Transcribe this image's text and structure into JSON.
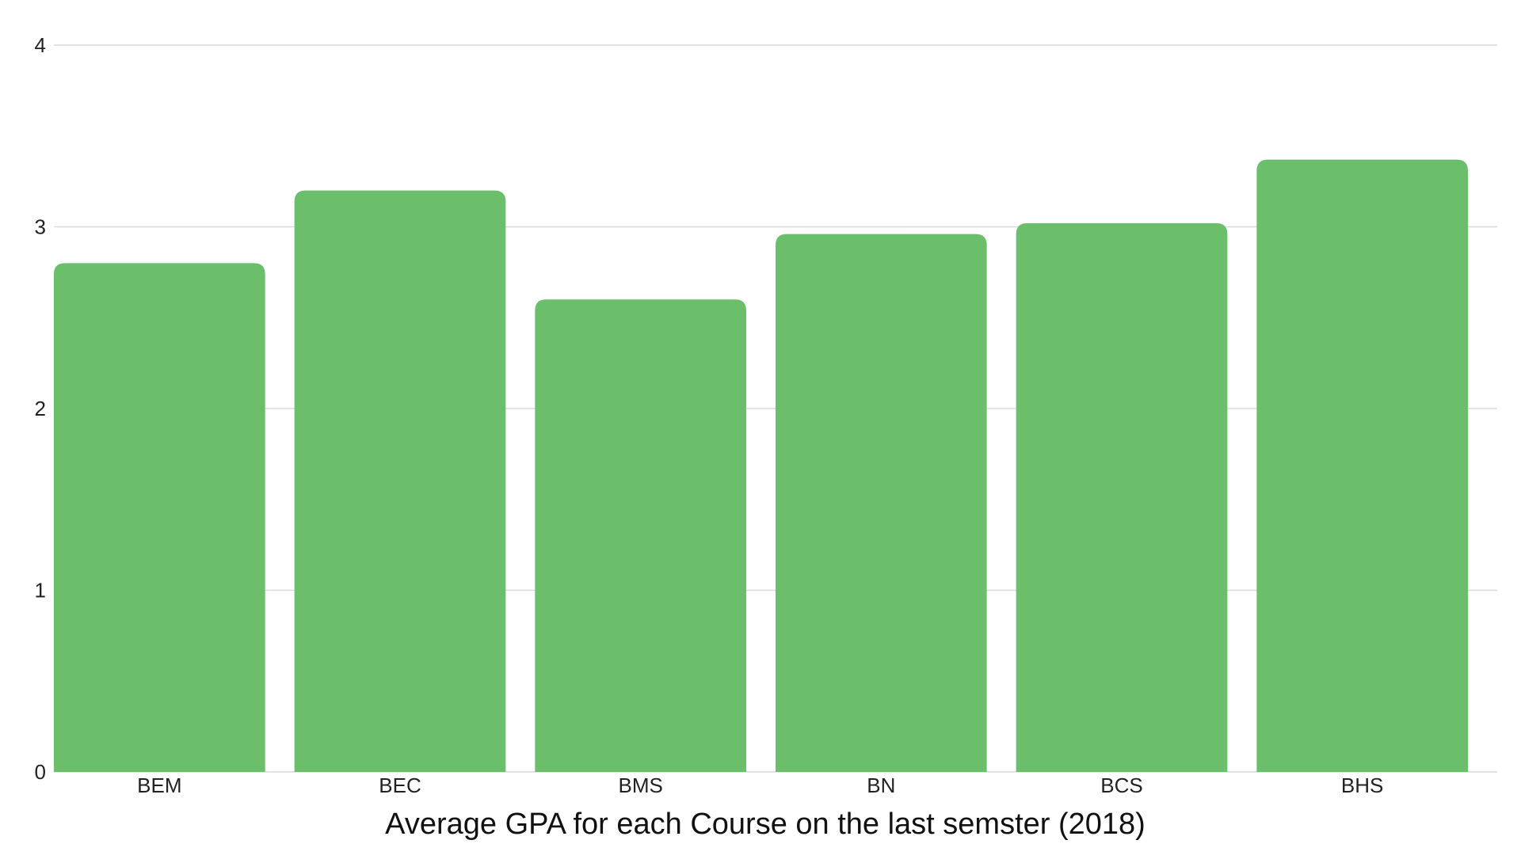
{
  "chart_data": {
    "type": "bar",
    "xlabel": "Average GPA for each Course on the last semster (2018)",
    "ylabel": "",
    "categories": [
      "BEM",
      "BEC",
      "BMS",
      "BN",
      "BCS",
      "BHS"
    ],
    "values": [
      2.8,
      3.2,
      2.6,
      2.96,
      3.02,
      3.37
    ],
    "ylim": [
      0,
      4
    ],
    "yticks": [
      "0",
      "1",
      "2",
      "3",
      "4"
    ],
    "grid": true,
    "legend": "none",
    "colors": {
      "bar": "#6bbf6b",
      "grid": "#d9d9d9",
      "text": "#222222"
    }
  }
}
